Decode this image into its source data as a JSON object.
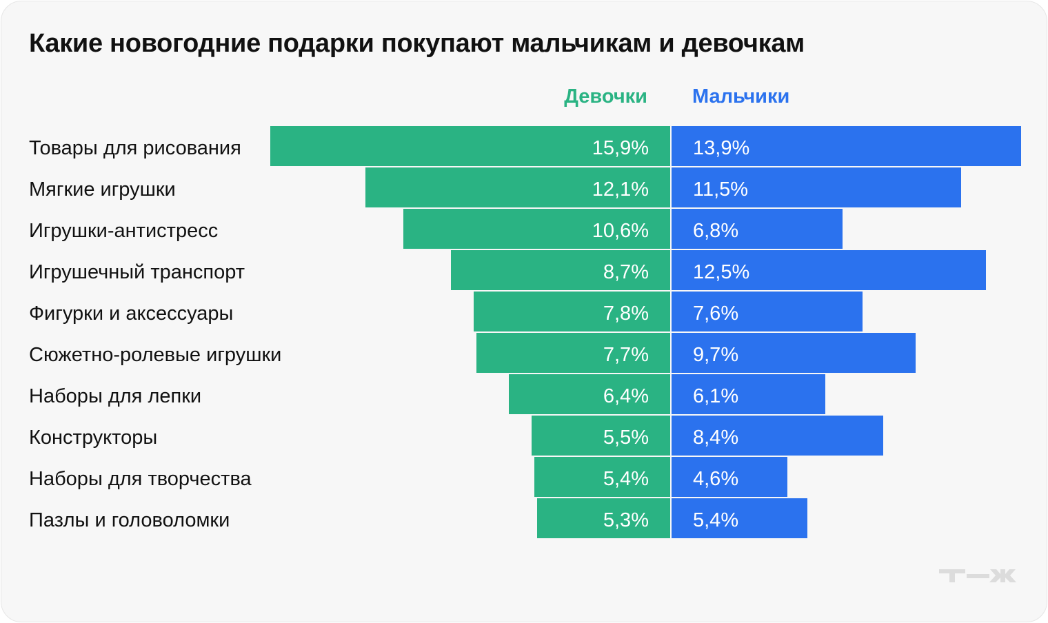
{
  "title": "Какие новогодние подарки покупают мальчикам и девочкам",
  "logo_text": "т—ж",
  "chart_data": {
    "type": "bar",
    "orientation": "horizontal-diverging",
    "title": "Какие новогодние подарки покупают мальчикам и девочкам",
    "categories": [
      "Товары для рисования",
      "Мягкие игрушки",
      "Игрушки-антистресс",
      "Игрушечный транспорт",
      "Фигурки и аксессуары",
      "Сюжетно-ролевые игрушки",
      "Наборы для лепки",
      "Конструкторы",
      "Наборы для творчества",
      "Пазлы и головоломки"
    ],
    "series": [
      {
        "name": "Девочки",
        "color": "#2ab383",
        "values": [
          15.9,
          12.1,
          10.6,
          8.7,
          7.8,
          7.7,
          6.4,
          5.5,
          5.4,
          5.3
        ],
        "labels": [
          "15,9%",
          "12,1%",
          "10,6%",
          "8,7%",
          "7,8%",
          "7,7%",
          "6,4%",
          "5,5%",
          "5,4%",
          "5,3%"
        ]
      },
      {
        "name": "Мальчики",
        "color": "#2b72ee",
        "values": [
          13.9,
          11.5,
          6.8,
          12.5,
          7.6,
          9.7,
          6.1,
          8.4,
          4.6,
          5.4
        ],
        "labels": [
          "13,9%",
          "11,5%",
          "6,8%",
          "12,5%",
          "7,6%",
          "9,7%",
          "6,1%",
          "8,4%",
          "4,6%",
          "5,4%"
        ]
      }
    ],
    "unit": "%",
    "legend": "top-center"
  }
}
